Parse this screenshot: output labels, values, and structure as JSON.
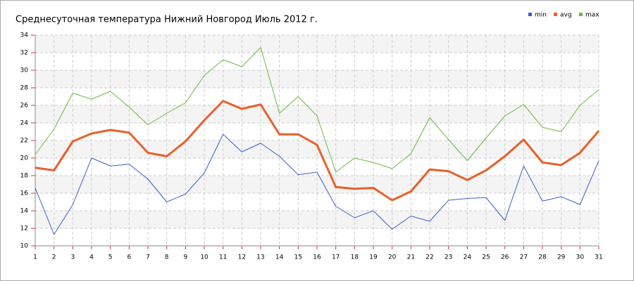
{
  "chart_data": {
    "type": "line",
    "title": "Среднесуточная температура Нижний Новгород  Июль 2012 г.",
    "x": [
      1,
      2,
      3,
      4,
      5,
      6,
      7,
      8,
      9,
      10,
      11,
      12,
      13,
      14,
      15,
      16,
      17,
      18,
      19,
      20,
      21,
      22,
      23,
      24,
      25,
      26,
      27,
      28,
      29,
      30,
      31
    ],
    "series": [
      {
        "name": "min",
        "color": "#3a5fcd",
        "width": 1,
        "values": [
          16.6,
          11.3,
          14.7,
          20.0,
          19.1,
          19.3,
          17.6,
          15.0,
          15.9,
          18.3,
          22.7,
          20.7,
          21.7,
          20.2,
          18.1,
          18.4,
          14.5,
          13.2,
          14.0,
          11.9,
          13.4,
          12.8,
          15.2,
          15.4,
          15.5,
          12.9,
          19.1,
          15.1,
          15.6,
          14.7,
          19.7
        ]
      },
      {
        "name": "avg",
        "color": "#e8602c",
        "width": 3,
        "values": [
          18.9,
          18.6,
          21.9,
          22.8,
          23.2,
          22.9,
          20.6,
          20.2,
          21.9,
          24.3,
          26.5,
          25.6,
          26.1,
          22.7,
          22.7,
          21.5,
          16.7,
          16.5,
          16.6,
          15.2,
          16.2,
          18.7,
          18.5,
          17.5,
          18.6,
          20.2,
          22.1,
          19.5,
          19.2,
          20.6,
          23.1
        ]
      },
      {
        "name": "max",
        "color": "#6ab93c",
        "width": 1,
        "values": [
          20.4,
          23.3,
          27.4,
          26.7,
          27.6,
          25.8,
          23.8,
          25.1,
          26.3,
          29.4,
          31.2,
          30.4,
          32.6,
          25.1,
          27.0,
          24.8,
          18.4,
          20.0,
          19.5,
          18.8,
          20.5,
          24.6,
          22.1,
          19.7,
          22.3,
          24.8,
          26.1,
          23.5,
          23.0,
          26.0,
          27.8
        ]
      }
    ],
    "xlim": [
      1,
      31
    ],
    "xticks": [
      1,
      2,
      3,
      4,
      5,
      6,
      7,
      8,
      9,
      10,
      11,
      12,
      13,
      14,
      15,
      16,
      17,
      18,
      19,
      20,
      21,
      22,
      23,
      24,
      25,
      26,
      27,
      28,
      29,
      30,
      31
    ],
    "ylim": [
      10,
      34
    ],
    "yticks": [
      10,
      12,
      14,
      16,
      18,
      20,
      22,
      24,
      26,
      28,
      30,
      32,
      34
    ],
    "grid": true,
    "legend": "top-right"
  }
}
